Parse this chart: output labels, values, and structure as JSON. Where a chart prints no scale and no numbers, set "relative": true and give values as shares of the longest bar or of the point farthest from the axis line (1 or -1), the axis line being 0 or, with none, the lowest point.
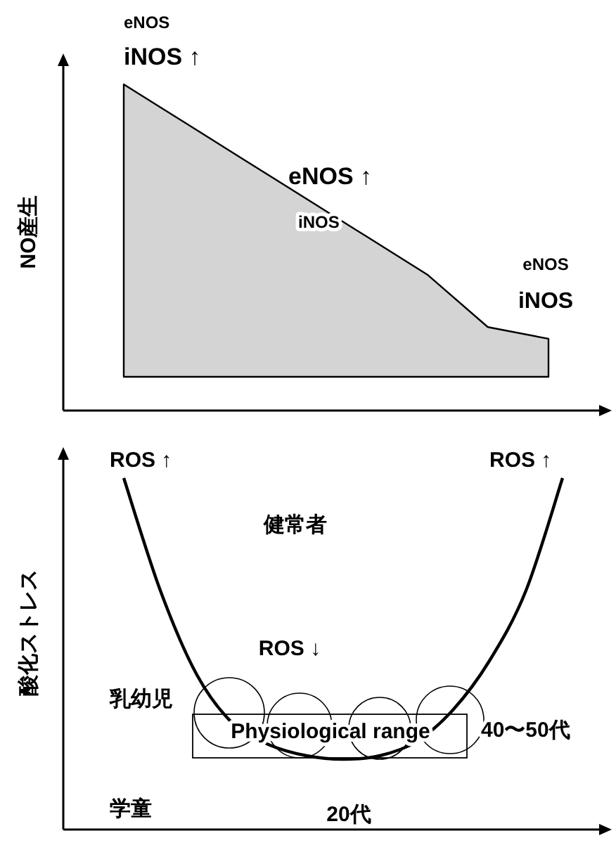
{
  "chart_data": [
    {
      "type": "area",
      "relative": true,
      "ylabel": "NO産生",
      "categories": [
        null,
        null,
        null,
        null,
        null,
        null,
        null,
        null
      ],
      "series": [
        {
          "color": "#d4d4d4",
          "values": [
            1,
            0.87,
            0.74,
            0.61,
            0.48,
            0.35,
            0.17,
            0.13
          ]
        }
      ],
      "annotations": [
        "eNOS",
        "iNOS ↑",
        "eNOS ↑",
        "iNOS",
        "eNOS",
        "iNOS"
      ]
    },
    {
      "type": "line",
      "relative": true,
      "ylabel": "酸化ストレス",
      "categories": [
        null,
        null,
        null,
        null,
        null,
        null,
        null,
        null,
        null,
        null,
        null,
        null,
        null
      ],
      "series": [
        {
          "color": "#000000",
          "values": [
            1,
            0.68,
            0.44,
            0.3,
            0.24,
            0.21,
            0.2,
            0.21,
            0.25,
            0.34,
            0.48,
            0.68,
            1
          ]
        }
      ],
      "annotations": [
        "ROS ↑",
        "ROS ↑",
        "健常者",
        "ROS ↓",
        "乳幼児",
        "学童",
        "Physiological range",
        "20代",
        "40〜50代"
      ]
    }
  ]
}
